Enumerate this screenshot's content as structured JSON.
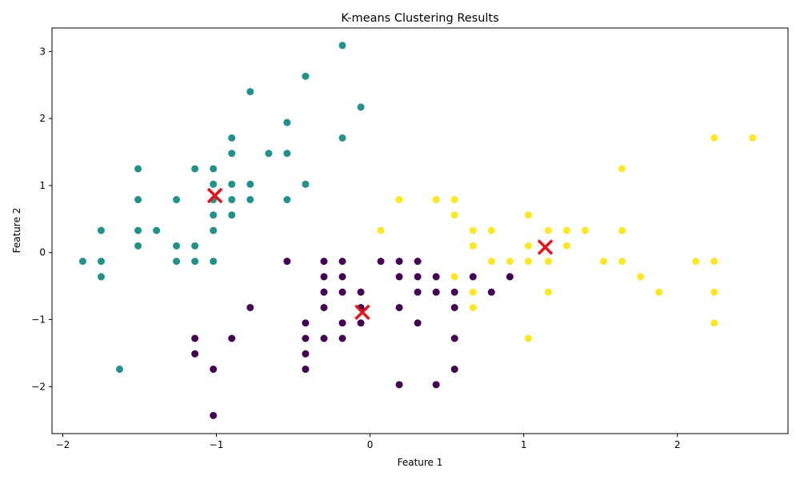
{
  "chart_data": {
    "type": "scatter",
    "title": "K-means Clustering Results",
    "xlabel": "Feature 1",
    "ylabel": "Feature 2",
    "xlim": [
      -2.07,
      2.72
    ],
    "ylim": [
      -2.7,
      3.35
    ],
    "xticks": [
      -2,
      -1,
      0,
      1,
      2
    ],
    "yticks": [
      -2,
      -1,
      0,
      1,
      2,
      3
    ],
    "grid": false,
    "legend": "none",
    "cluster_colors": [
      "#440154",
      "#21918c",
      "#fde725"
    ],
    "centroid_color": "#e8101a",
    "points": {
      "cluster0": [
        [
          -1.02,
          -2.43
        ],
        [
          -1.02,
          -1.74
        ],
        [
          -1.14,
          -1.51
        ],
        [
          -1.14,
          -1.28
        ],
        [
          -0.9,
          -1.28
        ],
        [
          -0.78,
          -0.82
        ],
        [
          -0.54,
          -0.13
        ],
        [
          -0.42,
          -1.05
        ],
        [
          -0.42,
          -1.28
        ],
        [
          -0.42,
          -1.51
        ],
        [
          -0.42,
          -1.74
        ],
        [
          -0.3,
          -1.28
        ],
        [
          -0.3,
          -0.82
        ],
        [
          -0.3,
          -0.59
        ],
        [
          -0.3,
          -0.36
        ],
        [
          -0.3,
          -0.13
        ],
        [
          -0.18,
          -0.13
        ],
        [
          -0.18,
          -0.36
        ],
        [
          -0.18,
          -0.59
        ],
        [
          -0.18,
          -1.05
        ],
        [
          -0.18,
          -1.28
        ],
        [
          -0.06,
          -0.59
        ],
        [
          -0.06,
          -1.05
        ],
        [
          -0.06,
          -0.82
        ],
        [
          0.07,
          -0.13
        ],
        [
          0.19,
          -0.13
        ],
        [
          0.19,
          -0.36
        ],
        [
          0.19,
          -0.82
        ],
        [
          0.19,
          -1.97
        ],
        [
          0.31,
          -0.13
        ],
        [
          0.31,
          -0.36
        ],
        [
          0.31,
          -0.59
        ],
        [
          0.31,
          -1.05
        ],
        [
          0.43,
          -0.36
        ],
        [
          0.43,
          -0.59
        ],
        [
          0.43,
          -1.97
        ],
        [
          0.55,
          -0.59
        ],
        [
          0.55,
          -0.82
        ],
        [
          0.55,
          -1.28
        ],
        [
          0.55,
          -1.74
        ],
        [
          0.67,
          -0.36
        ],
        [
          0.79,
          -0.59
        ],
        [
          0.91,
          -0.36
        ]
      ],
      "cluster1": [
        [
          -1.87,
          -0.13
        ],
        [
          -1.75,
          0.33
        ],
        [
          -1.75,
          -0.13
        ],
        [
          -1.75,
          -0.36
        ],
        [
          -1.63,
          -1.74
        ],
        [
          -1.51,
          1.25
        ],
        [
          -1.51,
          0.79
        ],
        [
          -1.51,
          0.33
        ],
        [
          -1.51,
          0.1
        ],
        [
          -1.39,
          0.33
        ],
        [
          -1.26,
          0.79
        ],
        [
          -1.26,
          0.1
        ],
        [
          -1.26,
          -0.13
        ],
        [
          -1.14,
          1.25
        ],
        [
          -1.14,
          0.1
        ],
        [
          -1.14,
          -0.13
        ],
        [
          -1.02,
          1.25
        ],
        [
          -1.02,
          1.02
        ],
        [
          -1.02,
          0.79
        ],
        [
          -1.02,
          0.56
        ],
        [
          -1.02,
          0.33
        ],
        [
          -1.02,
          -0.13
        ],
        [
          -0.9,
          1.71
        ],
        [
          -0.9,
          1.48
        ],
        [
          -0.9,
          1.02
        ],
        [
          -0.9,
          0.79
        ],
        [
          -0.9,
          0.56
        ],
        [
          -0.78,
          2.4
        ],
        [
          -0.78,
          1.02
        ],
        [
          -0.78,
          0.79
        ],
        [
          -0.66,
          1.48
        ],
        [
          -0.54,
          1.94
        ],
        [
          -0.54,
          1.48
        ],
        [
          -0.54,
          0.79
        ],
        [
          -0.42,
          2.63
        ],
        [
          -0.42,
          1.02
        ],
        [
          -0.18,
          3.09
        ],
        [
          -0.18,
          1.71
        ],
        [
          -0.06,
          2.17
        ]
      ],
      "cluster2": [
        [
          0.07,
          0.33
        ],
        [
          0.19,
          0.79
        ],
        [
          0.43,
          0.79
        ],
        [
          0.55,
          0.79
        ],
        [
          0.55,
          0.56
        ],
        [
          0.55,
          -0.36
        ],
        [
          0.67,
          0.33
        ],
        [
          0.67,
          0.1
        ],
        [
          0.67,
          -0.59
        ],
        [
          0.67,
          -0.82
        ],
        [
          0.79,
          0.33
        ],
        [
          0.79,
          -0.13
        ],
        [
          0.91,
          -0.13
        ],
        [
          1.03,
          0.56
        ],
        [
          1.03,
          0.1
        ],
        [
          1.03,
          -0.13
        ],
        [
          1.03,
          -1.28
        ],
        [
          1.16,
          0.33
        ],
        [
          1.16,
          -0.13
        ],
        [
          1.16,
          -0.59
        ],
        [
          1.28,
          0.33
        ],
        [
          1.28,
          0.1
        ],
        [
          1.4,
          0.33
        ],
        [
          1.52,
          -0.13
        ],
        [
          1.64,
          1.25
        ],
        [
          1.64,
          0.33
        ],
        [
          1.64,
          -0.13
        ],
        [
          1.76,
          -0.36
        ],
        [
          1.88,
          -0.59
        ],
        [
          2.12,
          -0.13
        ],
        [
          2.24,
          1.71
        ],
        [
          2.24,
          -0.13
        ],
        [
          2.24,
          -0.59
        ],
        [
          2.24,
          -1.05
        ],
        [
          2.49,
          1.71
        ]
      ]
    },
    "centroids": [
      [
        -0.05,
        -0.89
      ],
      [
        -1.01,
        0.85
      ],
      [
        1.14,
        0.08
      ]
    ]
  }
}
